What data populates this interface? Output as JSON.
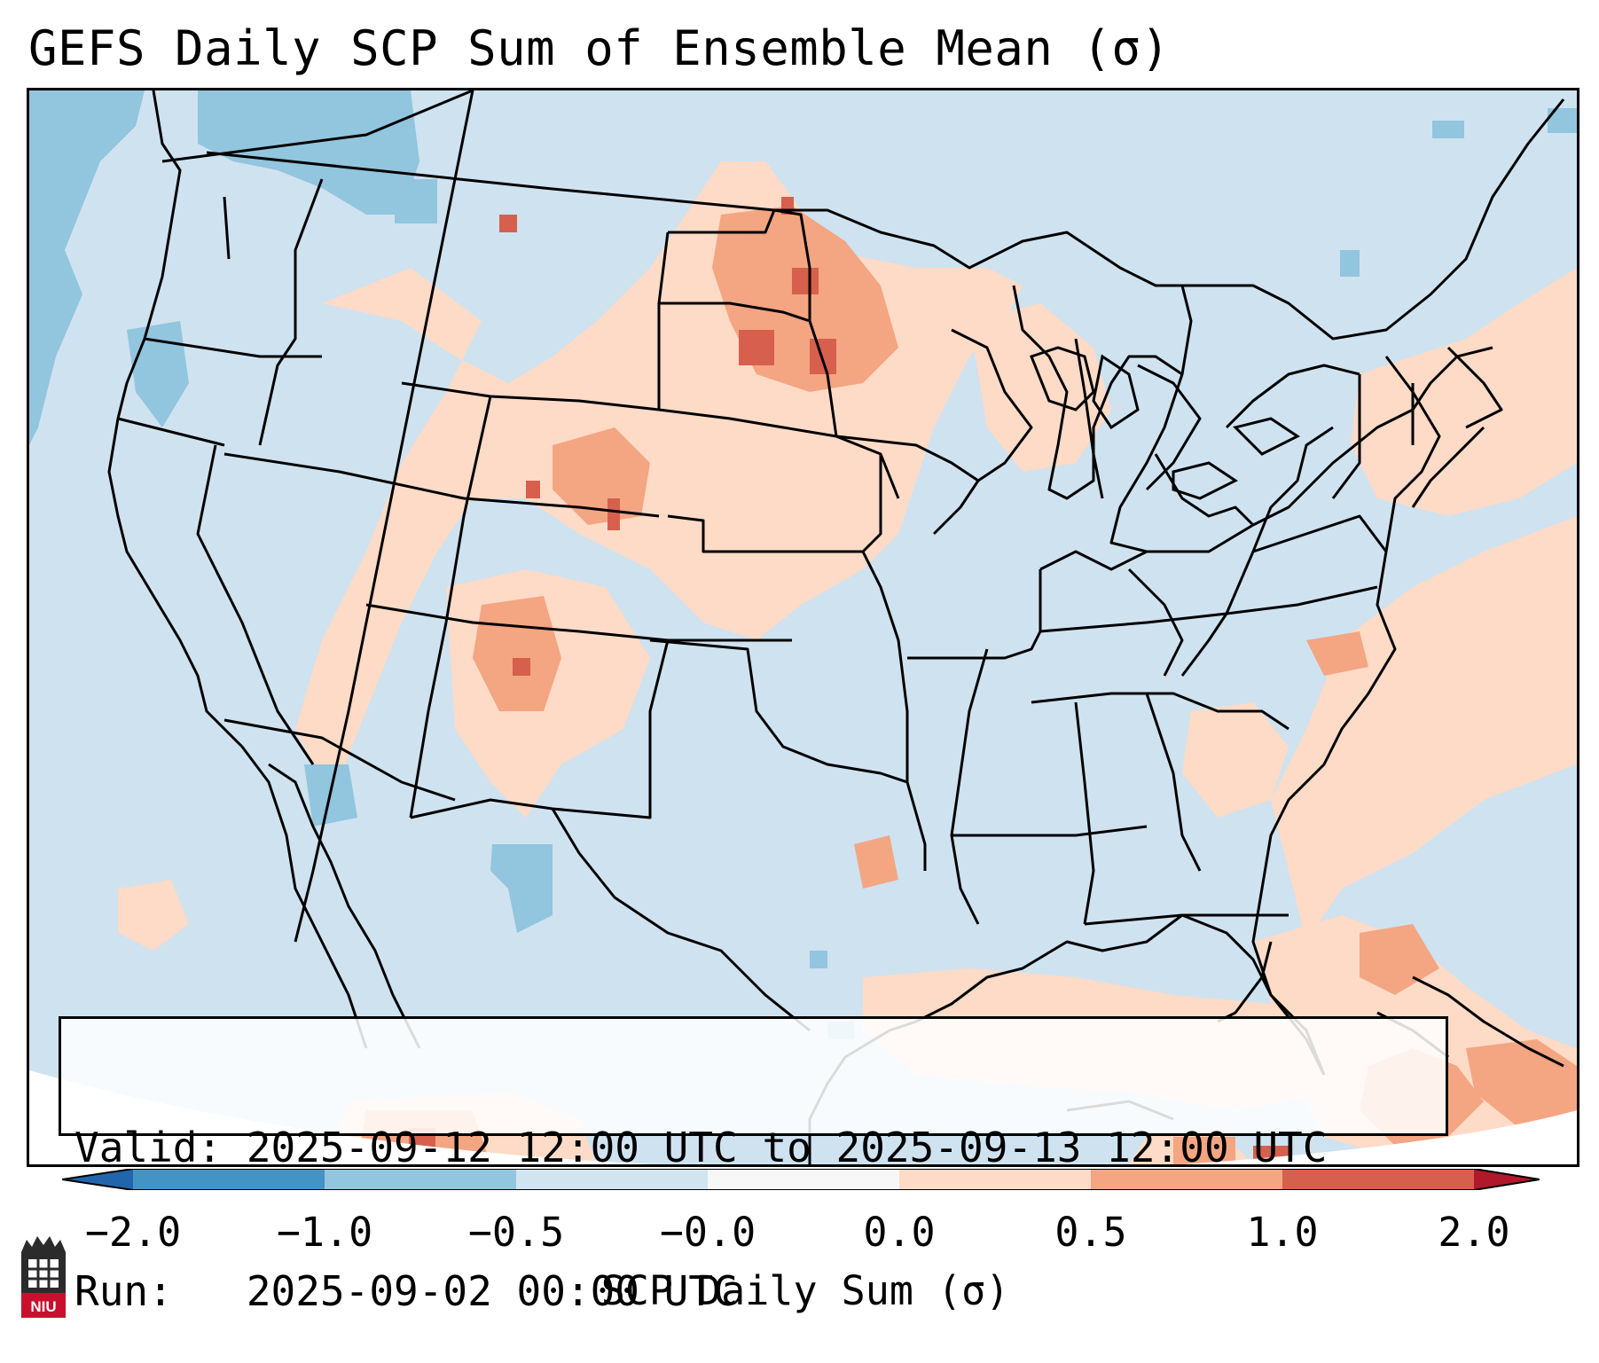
{
  "title": "GEFS Daily SCP Sum of Ensemble Mean (σ)",
  "info": {
    "valid_line": "Valid: 2025-09-12 12:00 UTC to 2025-09-13 12:00 UTC",
    "run_line": "Run:   2025-09-02 00:00 UTC"
  },
  "colorbar": {
    "label": "SCP Daily Sum (σ)",
    "ticks": [
      "−2.0",
      "−1.0",
      "−0.5",
      "−0.0",
      "0.0",
      "0.5",
      "1.0",
      "2.0"
    ],
    "bins": [
      {
        "range": "< -2.0",
        "color": "#2166ac"
      },
      {
        "range": "-2.0 to -1.0",
        "color": "#4393c3"
      },
      {
        "range": "-1.0 to -0.5",
        "color": "#92c5de"
      },
      {
        "range": "-0.5 to -0.0",
        "color": "#d1e5f0"
      },
      {
        "range": "-0.0 to 0.0",
        "color": "#f7f7f7"
      },
      {
        "range": "0.0 to 0.5",
        "color": "#fddbc7"
      },
      {
        "range": "0.5 to 1.0",
        "color": "#f4a582"
      },
      {
        "range": "1.0 to 2.0",
        "color": "#d6604d"
      },
      {
        "range": "> 2.0",
        "color": "#b2182b"
      }
    ]
  },
  "logo": {
    "text": "NIU",
    "color": "#c8102e"
  },
  "colors": {
    "background_field": "#cfe2ef",
    "light_positive": "#fddbc7",
    "mid_positive": "#f4a582",
    "strong_positive": "#d6604d",
    "light_negative": "#92c5de",
    "borders": "#000000"
  }
}
